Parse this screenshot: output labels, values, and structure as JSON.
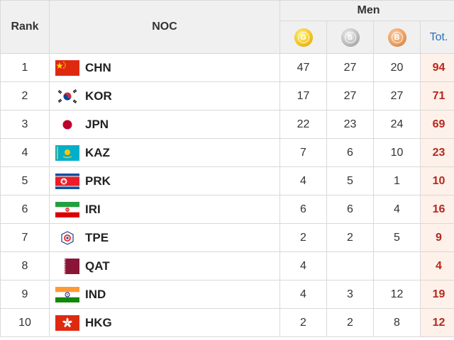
{
  "header": {
    "rank": "Rank",
    "noc": "NOC",
    "group": "Men",
    "gold_letter": "G",
    "silver_letter": "S",
    "bronze_letter": "B",
    "gold_icon": "gold-medal-icon",
    "silver_icon": "silver-medal-icon",
    "bronze_icon": "bronze-medal-icon",
    "total": "Tot."
  },
  "colors": {
    "total_text": "#b5281c",
    "total_bg": "#fdf1ea",
    "tot_header": "#2b6fb6",
    "gold": "#f2c21a",
    "silver": "#b8b8b8",
    "bronze": "#e89a5c"
  },
  "rows": [
    {
      "rank": "1",
      "code": "CHN",
      "flag": "china-flag-icon",
      "gold": "47",
      "silver": "27",
      "bronze": "20",
      "total": "94"
    },
    {
      "rank": "2",
      "code": "KOR",
      "flag": "south-korea-flag-icon",
      "gold": "17",
      "silver": "27",
      "bronze": "27",
      "total": "71"
    },
    {
      "rank": "3",
      "code": "JPN",
      "flag": "japan-flag-icon",
      "gold": "22",
      "silver": "23",
      "bronze": "24",
      "total": "69"
    },
    {
      "rank": "4",
      "code": "KAZ",
      "flag": "kazakhstan-flag-icon",
      "gold": "7",
      "silver": "6",
      "bronze": "10",
      "total": "23"
    },
    {
      "rank": "5",
      "code": "PRK",
      "flag": "north-korea-flag-icon",
      "gold": "4",
      "silver": "5",
      "bronze": "1",
      "total": "10"
    },
    {
      "rank": "6",
      "code": "IRI",
      "flag": "iran-flag-icon",
      "gold": "6",
      "silver": "6",
      "bronze": "4",
      "total": "16"
    },
    {
      "rank": "7",
      "code": "TPE",
      "flag": "chinese-taipei-flag-icon",
      "gold": "2",
      "silver": "2",
      "bronze": "5",
      "total": "9"
    },
    {
      "rank": "8",
      "code": "QAT",
      "flag": "qatar-flag-icon",
      "gold": "4",
      "silver": "",
      "bronze": "",
      "total": "4"
    },
    {
      "rank": "9",
      "code": "IND",
      "flag": "india-flag-icon",
      "gold": "4",
      "silver": "3",
      "bronze": "12",
      "total": "19"
    },
    {
      "rank": "10",
      "code": "HKG",
      "flag": "hong-kong-flag-icon",
      "gold": "2",
      "silver": "2",
      "bronze": "8",
      "total": "12"
    }
  ]
}
